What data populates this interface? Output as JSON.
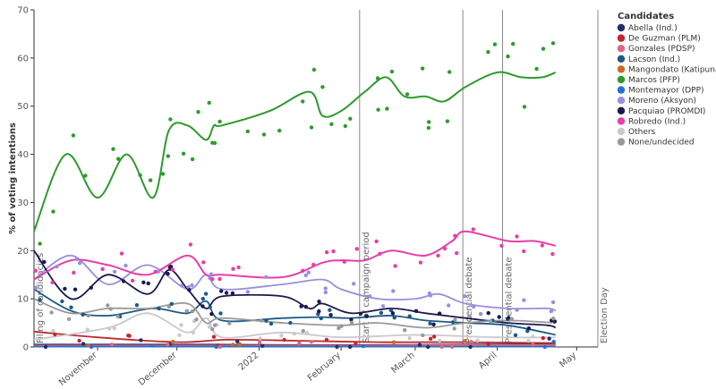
{
  "chart_data": {
    "type": "line",
    "title": "",
    "ylabel": "% of voting intentions",
    "xlabel": "",
    "ylim": [
      0,
      70
    ],
    "yticks": [
      0,
      10,
      20,
      30,
      40,
      50,
      60,
      70
    ],
    "xlim": [
      "2021-10-08",
      "2022-05-09"
    ],
    "xticks": [
      {
        "date": "2021-11-01",
        "label": "November"
      },
      {
        "date": "2021-12-01",
        "label": "December"
      },
      {
        "date": "2022-01-01",
        "label": "2022"
      },
      {
        "date": "2022-02-01",
        "label": "February"
      },
      {
        "date": "2022-03-01",
        "label": "March"
      },
      {
        "date": "2022-04-01",
        "label": "April"
      },
      {
        "date": "2022-05-01",
        "label": "May"
      }
    ],
    "events": [
      {
        "date": "2021-10-08",
        "label": "Filing of candidacies"
      },
      {
        "date": "2022-02-08",
        "label": "Start of campaign period"
      },
      {
        "date": "2022-03-19",
        "label": "Presidential debate"
      },
      {
        "date": "2022-04-03",
        "label": "Presidential debate"
      },
      {
        "date": "2022-05-09",
        "label": "Election Day"
      }
    ],
    "legend_title": "Candidates",
    "legend_position": "right",
    "grid": false,
    "series": [
      {
        "name": "Abella (Ind.)",
        "color": "#1f2f6e",
        "x": [
          "2021-10-08",
          "2021-11-15",
          "2021-12-15",
          "2022-01-15",
          "2022-02-15",
          "2022-03-15",
          "2022-04-23"
        ],
        "y": [
          0.5,
          0.5,
          0.5,
          0.4,
          0.4,
          0.5,
          0.6
        ]
      },
      {
        "name": "De Guzman (PLM)",
        "color": "#c1272d",
        "x": [
          "2021-10-08",
          "2021-11-01",
          "2021-12-01",
          "2021-12-20",
          "2022-01-15",
          "2022-02-15",
          "2022-03-15",
          "2022-04-23"
        ],
        "y": [
          3.2,
          2.0,
          1.0,
          1.5,
          1.3,
          1.0,
          1.0,
          0.8
        ]
      },
      {
        "name": "Gonzales (PDSP)",
        "color": "#d96a7e",
        "x": [
          "2021-10-08",
          "2021-12-01",
          "2022-01-15",
          "2022-02-15",
          "2022-03-15",
          "2022-04-23"
        ],
        "y": [
          0.3,
          0.3,
          0.3,
          0.3,
          0.4,
          0.4
        ]
      },
      {
        "name": "Lacson (Ind.)",
        "color": "#1d5a85",
        "x": [
          "2021-10-08",
          "2021-10-22",
          "2021-11-05",
          "2021-11-22",
          "2021-12-05",
          "2021-12-12",
          "2021-12-18",
          "2022-01-10",
          "2022-01-24",
          "2022-02-05",
          "2022-02-20",
          "2022-03-05",
          "2022-03-20",
          "2022-04-05",
          "2022-04-23"
        ],
        "y": [
          12,
          7.5,
          6.5,
          8,
          7,
          9.5,
          5.5,
          6,
          6.2,
          6,
          6.5,
          5.5,
          5,
          4.5,
          2.5
        ]
      },
      {
        "name": "Mangondato (Katipunan)",
        "color": "#cc6a1e",
        "x": [
          "2021-10-08",
          "2021-12-01",
          "2022-02-15",
          "2022-04-23"
        ],
        "y": [
          0.1,
          0.1,
          0.1,
          0.1
        ]
      },
      {
        "name": "Marcos (PFP)",
        "color": "#2d9b2d",
        "x": [
          "2021-10-08",
          "2021-10-20",
          "2021-11-01",
          "2021-11-12",
          "2021-11-22",
          "2021-11-28",
          "2021-12-05",
          "2021-12-12",
          "2021-12-15",
          "2021-12-18",
          "2022-01-05",
          "2022-01-20",
          "2022-01-25",
          "2022-02-01",
          "2022-02-10",
          "2022-02-18",
          "2022-02-25",
          "2022-03-05",
          "2022-03-12",
          "2022-03-20",
          "2022-04-01",
          "2022-04-10",
          "2022-04-18",
          "2022-04-23"
        ],
        "y": [
          24,
          40,
          31,
          40,
          31,
          45,
          46,
          43,
          46,
          46,
          49,
          53,
          48,
          49,
          53,
          56,
          52,
          52,
          51,
          54,
          57,
          56,
          56,
          57
        ]
      },
      {
        "name": "Montemayor (DPP)",
        "color": "#2a6fd0",
        "x": [
          "2021-10-08",
          "2021-12-01",
          "2022-02-15",
          "2022-04-23"
        ],
        "y": [
          0.1,
          0.1,
          0.1,
          0.1
        ]
      },
      {
        "name": "Moreno (Aksyon)",
        "color": "#9a8ee0",
        "x": [
          "2021-10-08",
          "2021-10-22",
          "2021-11-05",
          "2021-11-20",
          "2021-12-05",
          "2021-12-12",
          "2021-12-18",
          "2022-01-10",
          "2022-01-25",
          "2022-02-01",
          "2022-02-15",
          "2022-03-01",
          "2022-03-10",
          "2022-03-20",
          "2022-04-05",
          "2022-04-20",
          "2022-04-23"
        ],
        "y": [
          14,
          19,
          13,
          17,
          12,
          15,
          12,
          13,
          14,
          12,
          10,
          10,
          11,
          9,
          8,
          8,
          7.5
        ]
      },
      {
        "name": "Pacquiao (PROMDI)",
        "color": "#1a1a4e",
        "x": [
          "2021-10-08",
          "2021-10-22",
          "2021-11-05",
          "2021-11-20",
          "2021-11-28",
          "2021-12-05",
          "2021-12-12",
          "2021-12-18",
          "2022-01-10",
          "2022-01-20",
          "2022-01-25",
          "2022-02-05",
          "2022-02-20",
          "2022-03-05",
          "2022-03-20",
          "2022-04-05",
          "2022-04-20",
          "2022-04-23"
        ],
        "y": [
          20,
          10,
          15,
          11,
          16,
          12,
          8,
          10.5,
          10.5,
          8,
          9,
          7,
          8,
          7,
          6,
          5,
          4.5,
          4
        ]
      },
      {
        "name": "Robredo (Ind.)",
        "color": "#e83ea6",
        "x": [
          "2021-10-08",
          "2021-10-22",
          "2021-11-05",
          "2021-11-20",
          "2021-12-05",
          "2021-12-12",
          "2021-12-18",
          "2022-01-10",
          "2022-01-25",
          "2022-02-01",
          "2022-02-10",
          "2022-02-20",
          "2022-03-05",
          "2022-03-15",
          "2022-03-20",
          "2022-04-05",
          "2022-04-15",
          "2022-04-23"
        ],
        "y": [
          14,
          18,
          17,
          15,
          19,
          15,
          15,
          14.5,
          17.5,
          18,
          18,
          20,
          19,
          22,
          24,
          22,
          22,
          21
        ]
      },
      {
        "name": "Others",
        "color": "#c9c9cf",
        "x": [
          "2021-10-08",
          "2021-11-05",
          "2021-11-20",
          "2021-12-05",
          "2021-12-12",
          "2021-12-18",
          "2022-01-10",
          "2022-02-01",
          "2022-03-01",
          "2022-04-01",
          "2022-04-23"
        ],
        "y": [
          1.5,
          4,
          7,
          3,
          6,
          2,
          3,
          2,
          2.5,
          2,
          2
        ]
      },
      {
        "name": "None/undecided",
        "color": "#9a9a9a",
        "x": [
          "2021-10-08",
          "2021-10-22",
          "2021-11-05",
          "2021-11-20",
          "2021-12-05",
          "2021-12-12",
          "2021-12-18",
          "2022-01-10",
          "2022-02-01",
          "2022-02-15",
          "2022-03-05",
          "2022-03-20",
          "2022-04-05",
          "2022-04-23"
        ],
        "y": [
          10,
          7,
          8,
          8,
          9,
          5,
          6,
          5,
          4.5,
          5,
          4,
          5,
          5.5,
          5
        ]
      }
    ]
  }
}
